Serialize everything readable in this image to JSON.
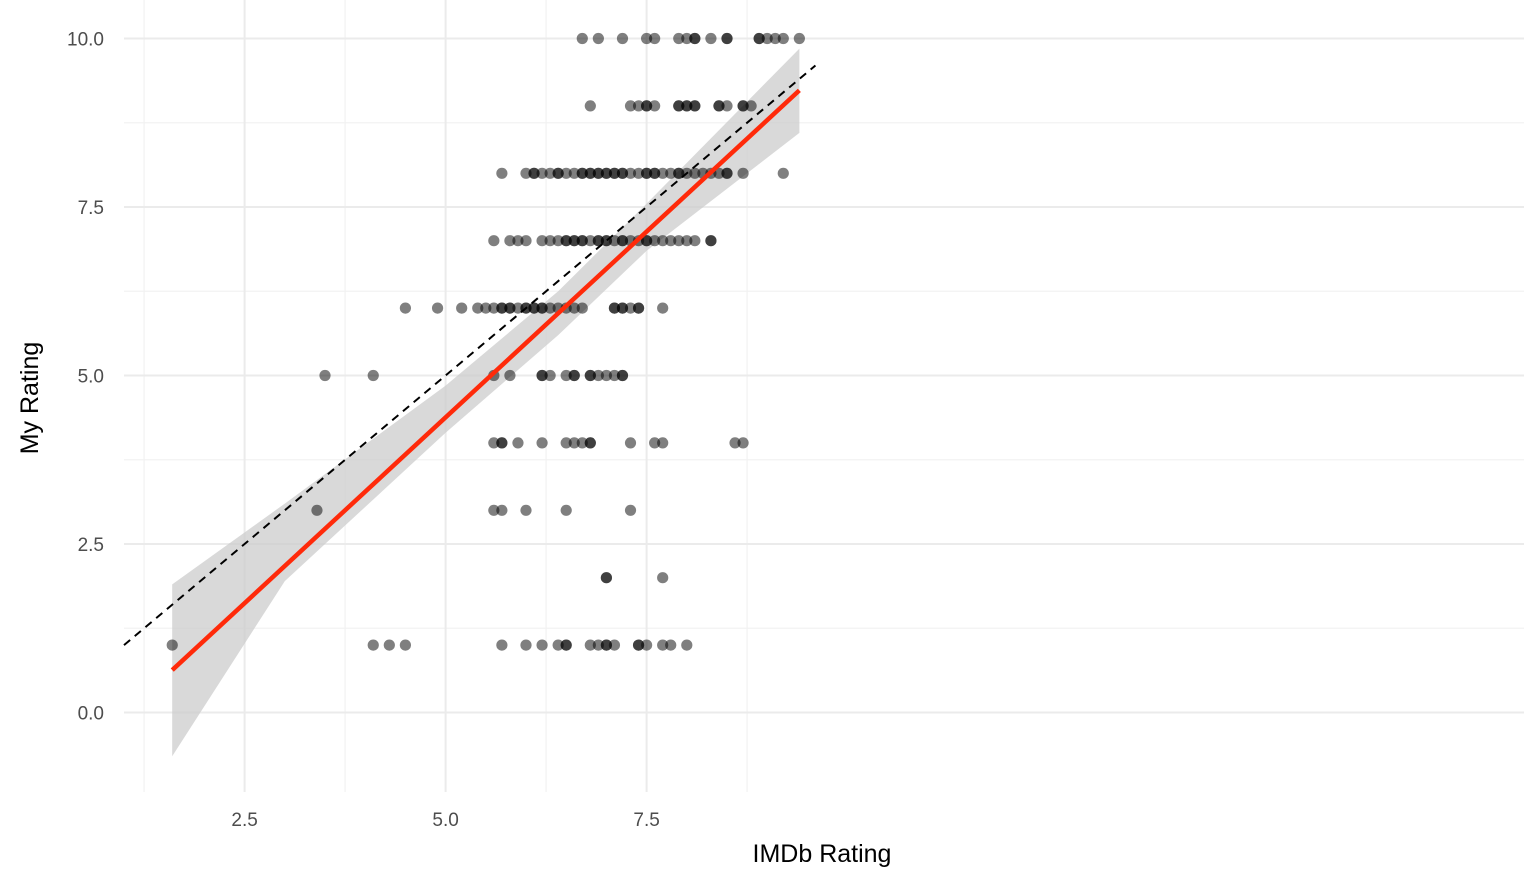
{
  "chart_data": {
    "type": "scatter",
    "xlabel": "IMDb Rating",
    "ylabel": "My Rating",
    "xlim": [
      1.0,
      9.6
    ],
    "ylim": [
      -1.2,
      10.35
    ],
    "x_ticks": [
      {
        "value": 2.5,
        "label": "2.5"
      },
      {
        "value": 5.0,
        "label": "5.0"
      },
      {
        "value": 7.5,
        "label": "7.5"
      }
    ],
    "y_ticks": [
      {
        "value": 0.0,
        "label": "0.0"
      },
      {
        "value": 2.5,
        "label": "2.5"
      },
      {
        "value": 5.0,
        "label": "5.0"
      },
      {
        "value": 7.5,
        "label": "7.5"
      },
      {
        "value": 10.0,
        "label": "10.0"
      }
    ],
    "grid": true,
    "colors": {
      "points": "#000000",
      "fit_line": "#ff2a0a",
      "confidence_band": "#cccccc",
      "reference_line": "#000000",
      "grid": "#ebebeb"
    },
    "reference_line": {
      "style": "dashed",
      "slope": 1,
      "intercept": 0
    },
    "regression": {
      "x_range": [
        1.6,
        9.4
      ],
      "y_at_start": 0.63,
      "y_at_end": 9.23,
      "band_lower": [
        {
          "x": 1.6,
          "y": -0.65
        },
        {
          "x": 3.0,
          "y": 1.95
        },
        {
          "x": 5.0,
          "y": 4.15
        },
        {
          "x": 6.4,
          "y": 5.6
        },
        {
          "x": 7.5,
          "y": 6.85
        },
        {
          "x": 9.4,
          "y": 8.6
        }
      ],
      "band_upper": [
        {
          "x": 1.6,
          "y": 1.9
        },
        {
          "x": 3.0,
          "y": 3.1
        },
        {
          "x": 5.0,
          "y": 4.85
        },
        {
          "x": 6.4,
          "y": 6.25
        },
        {
          "x": 7.5,
          "y": 7.55
        },
        {
          "x": 9.4,
          "y": 9.85
        }
      ]
    },
    "points": [
      {
        "x": 1.6,
        "y": 1
      },
      {
        "x": 4.1,
        "y": 1
      },
      {
        "x": 4.3,
        "y": 1
      },
      {
        "x": 4.5,
        "y": 1
      },
      {
        "x": 5.7,
        "y": 1
      },
      {
        "x": 6.0,
        "y": 1
      },
      {
        "x": 6.2,
        "y": 1
      },
      {
        "x": 6.4,
        "y": 1
      },
      {
        "x": 6.5,
        "y": 1
      },
      {
        "x": 6.5,
        "y": 1
      },
      {
        "x": 6.8,
        "y": 1
      },
      {
        "x": 6.9,
        "y": 1
      },
      {
        "x": 7.0,
        "y": 1
      },
      {
        "x": 7.0,
        "y": 1
      },
      {
        "x": 7.1,
        "y": 1
      },
      {
        "x": 7.4,
        "y": 1
      },
      {
        "x": 7.4,
        "y": 1
      },
      {
        "x": 7.5,
        "y": 1
      },
      {
        "x": 7.7,
        "y": 1
      },
      {
        "x": 7.8,
        "y": 1
      },
      {
        "x": 8.0,
        "y": 1
      },
      {
        "x": 7.0,
        "y": 2
      },
      {
        "x": 7.0,
        "y": 2
      },
      {
        "x": 7.7,
        "y": 2
      },
      {
        "x": 3.4,
        "y": 3
      },
      {
        "x": 5.6,
        "y": 3
      },
      {
        "x": 5.7,
        "y": 3
      },
      {
        "x": 6.0,
        "y": 3
      },
      {
        "x": 6.5,
        "y": 3
      },
      {
        "x": 7.3,
        "y": 3
      },
      {
        "x": 5.6,
        "y": 4
      },
      {
        "x": 5.7,
        "y": 4
      },
      {
        "x": 5.7,
        "y": 4
      },
      {
        "x": 5.9,
        "y": 4
      },
      {
        "x": 6.2,
        "y": 4
      },
      {
        "x": 6.5,
        "y": 4
      },
      {
        "x": 6.6,
        "y": 4
      },
      {
        "x": 6.7,
        "y": 4
      },
      {
        "x": 6.8,
        "y": 4
      },
      {
        "x": 6.8,
        "y": 4
      },
      {
        "x": 7.3,
        "y": 4
      },
      {
        "x": 7.6,
        "y": 4
      },
      {
        "x": 7.7,
        "y": 4
      },
      {
        "x": 8.6,
        "y": 4
      },
      {
        "x": 8.7,
        "y": 4
      },
      {
        "x": 3.5,
        "y": 5
      },
      {
        "x": 4.1,
        "y": 5
      },
      {
        "x": 5.6,
        "y": 5
      },
      {
        "x": 5.8,
        "y": 5
      },
      {
        "x": 6.2,
        "y": 5
      },
      {
        "x": 6.2,
        "y": 5
      },
      {
        "x": 6.3,
        "y": 5
      },
      {
        "x": 6.5,
        "y": 5
      },
      {
        "x": 6.6,
        "y": 5
      },
      {
        "x": 6.6,
        "y": 5
      },
      {
        "x": 6.8,
        "y": 5
      },
      {
        "x": 6.8,
        "y": 5
      },
      {
        "x": 6.9,
        "y": 5
      },
      {
        "x": 7.0,
        "y": 5
      },
      {
        "x": 7.1,
        "y": 5
      },
      {
        "x": 7.2,
        "y": 5
      },
      {
        "x": 7.2,
        "y": 5
      },
      {
        "x": 4.5,
        "y": 6
      },
      {
        "x": 4.9,
        "y": 6
      },
      {
        "x": 5.2,
        "y": 6
      },
      {
        "x": 5.4,
        "y": 6
      },
      {
        "x": 5.5,
        "y": 6
      },
      {
        "x": 5.6,
        "y": 6
      },
      {
        "x": 5.7,
        "y": 6
      },
      {
        "x": 5.7,
        "y": 6
      },
      {
        "x": 5.8,
        "y": 6
      },
      {
        "x": 5.8,
        "y": 6
      },
      {
        "x": 5.9,
        "y": 6
      },
      {
        "x": 6.0,
        "y": 6
      },
      {
        "x": 6.0,
        "y": 6
      },
      {
        "x": 6.1,
        "y": 6
      },
      {
        "x": 6.1,
        "y": 6
      },
      {
        "x": 6.2,
        "y": 6
      },
      {
        "x": 6.2,
        "y": 6
      },
      {
        "x": 6.3,
        "y": 6
      },
      {
        "x": 6.4,
        "y": 6
      },
      {
        "x": 6.5,
        "y": 6
      },
      {
        "x": 6.6,
        "y": 6
      },
      {
        "x": 6.7,
        "y": 6
      },
      {
        "x": 7.1,
        "y": 6
      },
      {
        "x": 7.1,
        "y": 6
      },
      {
        "x": 7.2,
        "y": 6
      },
      {
        "x": 7.2,
        "y": 6
      },
      {
        "x": 7.3,
        "y": 6
      },
      {
        "x": 7.4,
        "y": 6
      },
      {
        "x": 7.4,
        "y": 6
      },
      {
        "x": 7.7,
        "y": 6
      },
      {
        "x": 5.6,
        "y": 7
      },
      {
        "x": 5.8,
        "y": 7
      },
      {
        "x": 5.9,
        "y": 7
      },
      {
        "x": 6.0,
        "y": 7
      },
      {
        "x": 6.2,
        "y": 7
      },
      {
        "x": 6.3,
        "y": 7
      },
      {
        "x": 6.4,
        "y": 7
      },
      {
        "x": 6.5,
        "y": 7
      },
      {
        "x": 6.5,
        "y": 7
      },
      {
        "x": 6.6,
        "y": 7
      },
      {
        "x": 6.6,
        "y": 7
      },
      {
        "x": 6.7,
        "y": 7
      },
      {
        "x": 6.7,
        "y": 7
      },
      {
        "x": 6.8,
        "y": 7
      },
      {
        "x": 6.9,
        "y": 7
      },
      {
        "x": 6.9,
        "y": 7
      },
      {
        "x": 7.0,
        "y": 7
      },
      {
        "x": 7.0,
        "y": 7
      },
      {
        "x": 7.1,
        "y": 7
      },
      {
        "x": 7.2,
        "y": 7
      },
      {
        "x": 7.2,
        "y": 7
      },
      {
        "x": 7.3,
        "y": 7
      },
      {
        "x": 7.4,
        "y": 7
      },
      {
        "x": 7.5,
        "y": 7
      },
      {
        "x": 7.5,
        "y": 7
      },
      {
        "x": 7.6,
        "y": 7
      },
      {
        "x": 7.7,
        "y": 7
      },
      {
        "x": 7.8,
        "y": 7
      },
      {
        "x": 7.9,
        "y": 7
      },
      {
        "x": 8.0,
        "y": 7
      },
      {
        "x": 8.1,
        "y": 7
      },
      {
        "x": 8.3,
        "y": 7
      },
      {
        "x": 8.3,
        "y": 7
      },
      {
        "x": 5.7,
        "y": 8
      },
      {
        "x": 6.0,
        "y": 8
      },
      {
        "x": 6.1,
        "y": 8
      },
      {
        "x": 6.1,
        "y": 8
      },
      {
        "x": 6.2,
        "y": 8
      },
      {
        "x": 6.3,
        "y": 8
      },
      {
        "x": 6.4,
        "y": 8
      },
      {
        "x": 6.4,
        "y": 8
      },
      {
        "x": 6.5,
        "y": 8
      },
      {
        "x": 6.6,
        "y": 8
      },
      {
        "x": 6.7,
        "y": 8
      },
      {
        "x": 6.7,
        "y": 8
      },
      {
        "x": 6.8,
        "y": 8
      },
      {
        "x": 6.8,
        "y": 8
      },
      {
        "x": 6.9,
        "y": 8
      },
      {
        "x": 6.9,
        "y": 8
      },
      {
        "x": 7.0,
        "y": 8
      },
      {
        "x": 7.0,
        "y": 8
      },
      {
        "x": 7.1,
        "y": 8
      },
      {
        "x": 7.1,
        "y": 8
      },
      {
        "x": 7.2,
        "y": 8
      },
      {
        "x": 7.2,
        "y": 8
      },
      {
        "x": 7.3,
        "y": 8
      },
      {
        "x": 7.4,
        "y": 8
      },
      {
        "x": 7.5,
        "y": 8
      },
      {
        "x": 7.5,
        "y": 8
      },
      {
        "x": 7.6,
        "y": 8
      },
      {
        "x": 7.6,
        "y": 8
      },
      {
        "x": 7.7,
        "y": 8
      },
      {
        "x": 7.8,
        "y": 8
      },
      {
        "x": 7.9,
        "y": 8
      },
      {
        "x": 7.9,
        "y": 8
      },
      {
        "x": 8.0,
        "y": 8
      },
      {
        "x": 8.1,
        "y": 8
      },
      {
        "x": 8.2,
        "y": 8
      },
      {
        "x": 8.3,
        "y": 8
      },
      {
        "x": 8.4,
        "y": 8
      },
      {
        "x": 8.5,
        "y": 8
      },
      {
        "x": 8.5,
        "y": 8
      },
      {
        "x": 8.7,
        "y": 8
      },
      {
        "x": 9.2,
        "y": 8
      },
      {
        "x": 6.8,
        "y": 9
      },
      {
        "x": 7.3,
        "y": 9
      },
      {
        "x": 7.4,
        "y": 9
      },
      {
        "x": 7.5,
        "y": 9
      },
      {
        "x": 7.5,
        "y": 9
      },
      {
        "x": 7.6,
        "y": 9
      },
      {
        "x": 7.9,
        "y": 9
      },
      {
        "x": 7.9,
        "y": 9
      },
      {
        "x": 8.0,
        "y": 9
      },
      {
        "x": 8.0,
        "y": 9
      },
      {
        "x": 8.1,
        "y": 9
      },
      {
        "x": 8.1,
        "y": 9
      },
      {
        "x": 8.4,
        "y": 9
      },
      {
        "x": 8.4,
        "y": 9
      },
      {
        "x": 8.5,
        "y": 9
      },
      {
        "x": 8.7,
        "y": 9
      },
      {
        "x": 8.7,
        "y": 9
      },
      {
        "x": 8.8,
        "y": 9
      },
      {
        "x": 6.7,
        "y": 10
      },
      {
        "x": 6.9,
        "y": 10
      },
      {
        "x": 7.2,
        "y": 10
      },
      {
        "x": 7.5,
        "y": 10
      },
      {
        "x": 7.6,
        "y": 10
      },
      {
        "x": 7.9,
        "y": 10
      },
      {
        "x": 8.0,
        "y": 10
      },
      {
        "x": 8.1,
        "y": 10
      },
      {
        "x": 8.1,
        "y": 10
      },
      {
        "x": 8.3,
        "y": 10
      },
      {
        "x": 8.5,
        "y": 10
      },
      {
        "x": 8.5,
        "y": 10
      },
      {
        "x": 8.9,
        "y": 10
      },
      {
        "x": 8.9,
        "y": 10
      },
      {
        "x": 9.0,
        "y": 10
      },
      {
        "x": 9.1,
        "y": 10
      },
      {
        "x": 9.2,
        "y": 10
      },
      {
        "x": 9.4,
        "y": 10
      }
    ]
  }
}
